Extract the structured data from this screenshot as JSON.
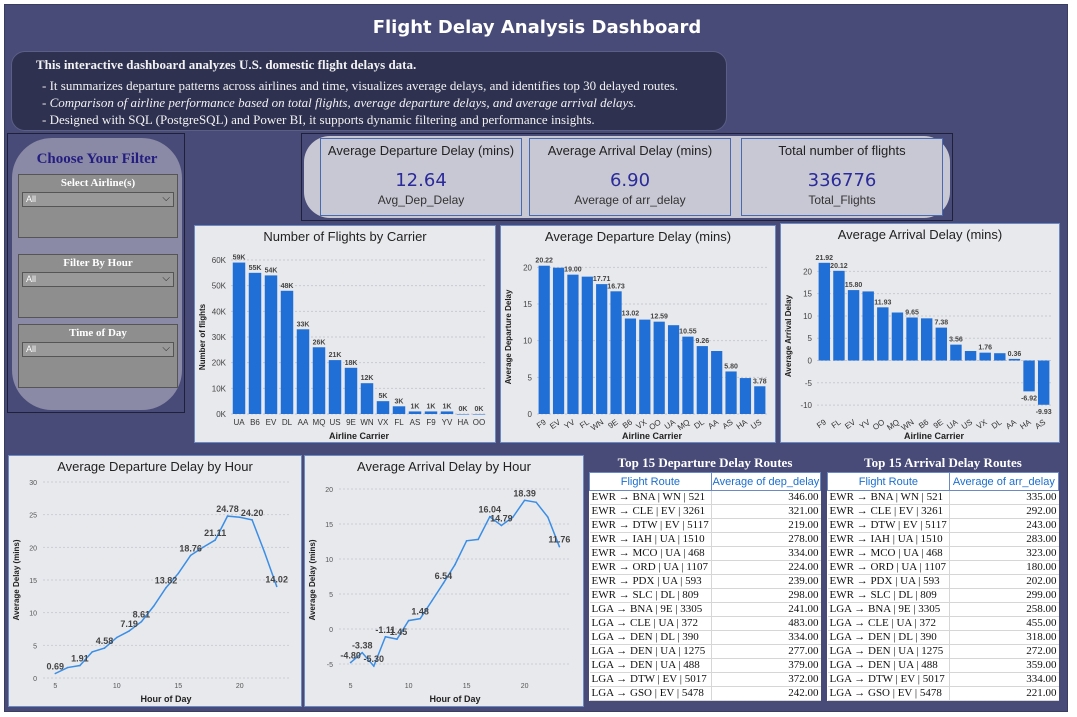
{
  "dashboard": {
    "title": "Flight Delay Analysis Dashboard",
    "intro_head": "This interactive dashboard analyzes U.S. domestic flight delays data.",
    "intro_lines": [
      "- It summarizes departure patterns across airlines and time, visualizes average delays, and identifies top 30 delayed routes.",
      "- Comparison of airline performance based on total flights, average departure delays, and average arrival delays.",
      "- Designed with SQL (PostgreSQL) and Power BI, it supports dynamic filtering and performance insights."
    ]
  },
  "filters": {
    "title": "Choose Your Filter",
    "airline": {
      "label": "Select Airline(s)",
      "value": "All"
    },
    "hour": {
      "label": "Filter By Hour",
      "value": "All"
    },
    "time_of_day": {
      "label": "Time of Day",
      "value": "All"
    }
  },
  "kpis": [
    {
      "title": "Average Departure Delay (mins)",
      "value": "12.64",
      "sub": "Avg_Dep_Delay"
    },
    {
      "title": "Average Arrival Delay (mins)",
      "value": "6.90",
      "sub": "Average of arr_delay"
    },
    {
      "title": "Total number of flights",
      "value": "336776",
      "sub": "Total_Flights"
    }
  ],
  "colors": {
    "bar": "#1f6fd6",
    "line": "#3a8ee6",
    "background": "#484b77"
  },
  "chart_data": [
    {
      "type": "bar",
      "title": "Number of Flights by Carrier",
      "xlabel": "Airline Carrier",
      "ylabel": "Number of flights",
      "categories": [
        "UA",
        "B6",
        "EV",
        "DL",
        "AA",
        "MQ",
        "US",
        "9E",
        "WN",
        "VX",
        "FL",
        "AS",
        "F9",
        "YV",
        "HA",
        "OO"
      ],
      "values": [
        59000,
        55000,
        54000,
        48000,
        33000,
        26000,
        21000,
        18000,
        12000,
        5000,
        3000,
        1000,
        1000,
        1000,
        0,
        0
      ],
      "data_labels": [
        "59K",
        "55K",
        "54K",
        "48K",
        "33K",
        "26K",
        "21K",
        "18K",
        "12K",
        "5K",
        "3K",
        "1K",
        "1K",
        "1K",
        "0K",
        "0K"
      ],
      "ylim": [
        0,
        60000
      ],
      "yticks": [
        "0K",
        "10K",
        "20K",
        "30K",
        "40K",
        "50K",
        "60K"
      ]
    },
    {
      "type": "bar",
      "title": "Average Departure Delay (mins)",
      "xlabel": "Airline Carrier",
      "ylabel": "Average Departure Delay",
      "categories": [
        "F9",
        "EV",
        "YV",
        "FL",
        "WN",
        "9E",
        "B6",
        "VX",
        "OO",
        "UA",
        "MQ",
        "DL",
        "AA",
        "AS",
        "HA",
        "US"
      ],
      "values": [
        20.22,
        19.95,
        19.0,
        18.73,
        17.71,
        16.73,
        13.02,
        12.87,
        12.59,
        12.11,
        10.55,
        9.26,
        8.59,
        5.8,
        4.9,
        3.78
      ],
      "data_labels": [
        "20.22",
        "",
        "19.00",
        "",
        "17.71",
        "16.73",
        "13.02",
        "",
        "12.59",
        "",
        "10.55",
        "9.26",
        "",
        "5.80",
        "",
        "3.78"
      ],
      "ylim": [
        0,
        21
      ],
      "yticks": [
        "0",
        "5",
        "10",
        "15",
        "20"
      ]
    },
    {
      "type": "bar",
      "title": "Average Arrival Delay (mins)",
      "xlabel": "Airline Carrier",
      "ylabel": "Average Arrival Delay",
      "categories": [
        "F9",
        "FL",
        "EV",
        "YV",
        "OO",
        "MQ",
        "WN",
        "B6",
        "9E",
        "UA",
        "US",
        "VX",
        "DL",
        "AA",
        "HA",
        "AS"
      ],
      "values": [
        21.92,
        20.12,
        15.8,
        15.5,
        11.93,
        10.77,
        9.65,
        9.46,
        7.38,
        3.56,
        2.13,
        1.76,
        1.64,
        0.36,
        -6.92,
        -9.93
      ],
      "data_labels": [
        "21.92",
        "20.12",
        "15.80",
        "",
        "11.93",
        "",
        "9.65",
        "",
        "7.38",
        "3.56",
        "",
        "1.76",
        "",
        "0.36",
        "-6.92",
        "-9.93"
      ],
      "ylim": [
        -12,
        23
      ],
      "yticks": [
        "-10",
        "-5",
        "0",
        "5",
        "10",
        "15",
        "20"
      ]
    },
    {
      "type": "line",
      "title": "Average Departure Delay by Hour",
      "xlabel": "Hour of Day",
      "ylabel": "Average Delay (mins)",
      "x": [
        5,
        6,
        7,
        8,
        9,
        10,
        11,
        12,
        13,
        14,
        15,
        16,
        17,
        18,
        19,
        20,
        21,
        22,
        23
      ],
      "y": [
        0.69,
        1.6,
        1.91,
        4.0,
        4.58,
        6.2,
        7.19,
        8.61,
        11.0,
        13.82,
        16.0,
        18.76,
        20.0,
        21.11,
        24.78,
        24.6,
        24.2,
        19.3,
        14.02
      ],
      "point_labels": [
        "0.69",
        "",
        "1.91",
        "",
        "4.58",
        "",
        "7.19",
        "8.61",
        "",
        "13.82",
        "",
        "18.76",
        "",
        "21.11",
        "24.78",
        "",
        "24.20",
        "",
        "14.02"
      ],
      "xticks": [
        "5",
        "10",
        "15",
        "20"
      ],
      "yticks": [
        "0",
        "5",
        "10",
        "15",
        "20",
        "25",
        "30"
      ],
      "ylim": [
        0,
        30
      ],
      "xlim": [
        4,
        24
      ]
    },
    {
      "type": "line",
      "title": "Average Arrival Delay by Hour",
      "xlabel": "Hour of Day",
      "ylabel": "Average Delay (mins)",
      "x": [
        5,
        6,
        7,
        8,
        9,
        10,
        11,
        12,
        13,
        14,
        15,
        16,
        17,
        18,
        19,
        20,
        21,
        22,
        23
      ],
      "y": [
        -4.8,
        -3.38,
        -5.3,
        -1.11,
        -1.45,
        1.2,
        1.48,
        4.0,
        6.54,
        9.2,
        12.6,
        12.8,
        16.04,
        14.79,
        16.0,
        18.39,
        18.1,
        16.0,
        11.76
      ],
      "point_labels": [
        "-4.80",
        "-3.38",
        "-5.30",
        "-1.11",
        "-1.45",
        "",
        "1.48",
        "",
        "6.54",
        "",
        "",
        "",
        "16.04",
        "14.79",
        "",
        "18.39",
        "",
        "",
        "11.76"
      ],
      "xticks": [
        "5",
        "10",
        "15",
        "20"
      ],
      "yticks": [
        "-5",
        "0",
        "5",
        "10",
        "15",
        "20"
      ],
      "ylim": [
        -7,
        21
      ],
      "xlim": [
        4,
        24
      ]
    }
  ],
  "dep_routes": {
    "title": "Top 15 Departure Delay Routes",
    "col_route": "Flight Route",
    "col_value": "Average of dep_delay",
    "rows": [
      [
        "EWR → BNA | WN | 521",
        "346.00"
      ],
      [
        "EWR → CLE | EV | 3261",
        "321.00"
      ],
      [
        "EWR → DTW | EV | 5117",
        "219.00"
      ],
      [
        "EWR → IAH | UA | 1510",
        "278.00"
      ],
      [
        "EWR → MCO | UA | 468",
        "334.00"
      ],
      [
        "EWR → ORD | UA | 1107",
        "224.00"
      ],
      [
        "EWR → PDX | UA | 593",
        "239.00"
      ],
      [
        "EWR → SLC | DL | 809",
        "298.00"
      ],
      [
        "LGA → BNA | 9E | 3305",
        "241.00"
      ],
      [
        "LGA → CLE | UA | 372",
        "483.00"
      ],
      [
        "LGA → DEN | DL | 390",
        "334.00"
      ],
      [
        "LGA → DEN | UA | 1275",
        "277.00"
      ],
      [
        "LGA → DEN | UA | 488",
        "379.00"
      ],
      [
        "LGA → DTW | EV | 5017",
        "372.00"
      ],
      [
        "LGA → GSO | EV | 5478",
        "242.00"
      ]
    ]
  },
  "arr_routes": {
    "title": "Top 15 Arrival Delay Routes",
    "col_route": "Flight Route",
    "col_value": "Average of arr_delay",
    "rows": [
      [
        "EWR → BNA | WN | 521",
        "335.00"
      ],
      [
        "EWR → CLE | EV | 3261",
        "292.00"
      ],
      [
        "EWR → DTW | EV | 5117",
        "243.00"
      ],
      [
        "EWR → IAH | UA | 1510",
        "283.00"
      ],
      [
        "EWR → MCO | UA | 468",
        "323.00"
      ],
      [
        "EWR → ORD | UA | 1107",
        "180.00"
      ],
      [
        "EWR → PDX | UA | 593",
        "202.00"
      ],
      [
        "EWR → SLC | DL | 809",
        "299.00"
      ],
      [
        "LGA → BNA | 9E | 3305",
        "258.00"
      ],
      [
        "LGA → CLE | UA | 372",
        "455.00"
      ],
      [
        "LGA → DEN | DL | 390",
        "318.00"
      ],
      [
        "LGA → DEN | UA | 1275",
        "272.00"
      ],
      [
        "LGA → DEN | UA | 488",
        "359.00"
      ],
      [
        "LGA → DTW | EV | 5017",
        "334.00"
      ],
      [
        "LGA → GSO | EV | 5478",
        "221.00"
      ]
    ]
  }
}
